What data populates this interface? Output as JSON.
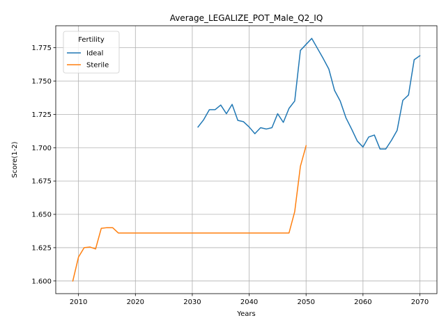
{
  "chart_data": {
    "type": "line",
    "title": "Average_LEGALIZE_POT_Male_Q2_IQ",
    "xlabel": "Years",
    "ylabel": "Score(1-2)",
    "xlim": [
      2006,
      2073
    ],
    "ylim": [
      1.5905,
      1.7915
    ],
    "xticks": [
      2010,
      2020,
      2030,
      2040,
      2050,
      2060,
      2070
    ],
    "yticks": [
      1.6,
      1.625,
      1.65,
      1.675,
      1.7,
      1.725,
      1.75,
      1.775
    ],
    "grid": true,
    "legend": {
      "title": "Fertility",
      "placement": "top-left"
    },
    "series": [
      {
        "name": "Ideal",
        "color": "#1f77b4",
        "x": [
          2031,
          2032,
          2033,
          2034,
          2035,
          2036,
          2037,
          2038,
          2039,
          2040,
          2041,
          2042,
          2043,
          2044,
          2045,
          2046,
          2047,
          2048,
          2049,
          2050,
          2051,
          2052,
          2053,
          2054,
          2055,
          2056,
          2057,
          2058,
          2059,
          2060,
          2061,
          2062,
          2063,
          2064,
          2065,
          2066,
          2067,
          2068,
          2069,
          2070
        ],
        "y": [
          1.7155,
          1.721,
          1.7285,
          1.7285,
          1.732,
          1.7255,
          1.7325,
          1.7205,
          1.7195,
          1.7155,
          1.7105,
          1.715,
          1.714,
          1.715,
          1.7255,
          1.719,
          1.7295,
          1.735,
          1.773,
          1.7775,
          1.782,
          1.7745,
          1.767,
          1.759,
          1.743,
          1.735,
          1.7225,
          1.714,
          1.705,
          1.7005,
          1.708,
          1.7095,
          1.699,
          1.699,
          1.7055,
          1.713,
          1.7355,
          1.7395,
          1.766,
          1.769
        ]
      },
      {
        "name": "Sterile",
        "color": "#ff7f0e",
        "x": [
          2009,
          2010,
          2011,
          2012,
          2013,
          2014,
          2015,
          2016,
          2017,
          2018,
          2019,
          2020,
          2021,
          2022,
          2023,
          2024,
          2025,
          2026,
          2027,
          2028,
          2029,
          2030,
          2031,
          2032,
          2033,
          2034,
          2035,
          2036,
          2037,
          2038,
          2039,
          2040,
          2041,
          2042,
          2043,
          2044,
          2045,
          2046,
          2047,
          2048,
          2049,
          2050
        ],
        "y": [
          1.6,
          1.618,
          1.625,
          1.6255,
          1.624,
          1.6395,
          1.64,
          1.64,
          1.636,
          1.636,
          1.636,
          1.636,
          1.636,
          1.636,
          1.636,
          1.636,
          1.636,
          1.636,
          1.636,
          1.636,
          1.636,
          1.636,
          1.636,
          1.636,
          1.636,
          1.636,
          1.636,
          1.636,
          1.636,
          1.636,
          1.636,
          1.636,
          1.636,
          1.636,
          1.636,
          1.636,
          1.636,
          1.636,
          1.636,
          1.652,
          1.686,
          1.7015
        ]
      }
    ]
  }
}
